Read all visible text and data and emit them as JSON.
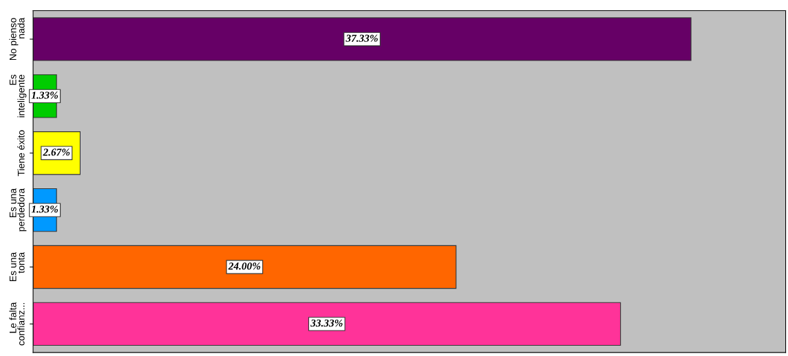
{
  "chart_data": {
    "type": "bar",
    "orientation": "horizontal",
    "categories": [
      "No pienso\nnada",
      "Es\ninteligente",
      "Tiene éxito",
      "Es una\nperdedora",
      "Es una\ntonta",
      "Le falta\nconfianz..."
    ],
    "values": [
      37.33,
      1.33,
      2.67,
      1.33,
      24.0,
      33.33
    ],
    "colors": [
      "#660066",
      "#00cc00",
      "#ffff00",
      "#0099ff",
      "#ff6600",
      "#ff3399"
    ],
    "value_labels": [
      "37.33%",
      "1.33%",
      "2.67%",
      "1.33%",
      "24.00%",
      "33.33%"
    ],
    "xlim": [
      0,
      42.7
    ],
    "tick_labels": "y",
    "grid": false,
    "legend": false
  }
}
